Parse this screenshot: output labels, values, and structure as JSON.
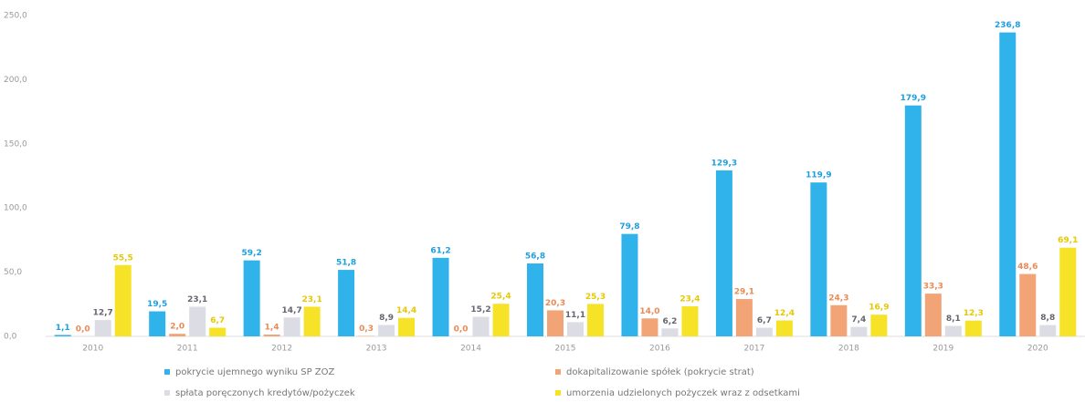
{
  "chart_data": {
    "type": "bar",
    "categories": [
      "2010",
      "2011",
      "2012",
      "2013",
      "2014",
      "2015",
      "2016",
      "2017",
      "2018",
      "2019",
      "2020"
    ],
    "series": [
      {
        "name": "pokrycie ujemnego wyniku SP ZOZ",
        "color": "#2fb3ea",
        "label_color": "#1e9fe0",
        "values": [
          1.1,
          19.5,
          59.2,
          51.8,
          61.2,
          56.8,
          79.8,
          129.3,
          119.9,
          179.9,
          236.8
        ],
        "value_labels": [
          "1,1",
          "19,5",
          "59,2",
          "51,8",
          "61,2",
          "56,8",
          "79,8",
          "129,3",
          "119,9",
          "179,9",
          "236,8"
        ]
      },
      {
        "name": "dokapitalizowanie spółek (pokrycie strat)",
        "color": "#f2a477",
        "label_color": "#ea8a55",
        "values": [
          0.0,
          2.0,
          1.4,
          0.3,
          0.0,
          20.3,
          14.0,
          29.1,
          24.3,
          33.3,
          48.6
        ],
        "value_labels": [
          "0,0",
          "2,0",
          "1,4",
          "0,3",
          "0,0",
          "20,3",
          "14,0",
          "29,1",
          "24,3",
          "33,3",
          "48,6"
        ]
      },
      {
        "name": "spłata poręczonych kredytów/pożyczek",
        "color": "#dcdce4",
        "label_color": "#666670",
        "values": [
          12.7,
          23.1,
          14.7,
          8.9,
          15.2,
          11.1,
          6.2,
          6.7,
          7.4,
          8.1,
          8.8
        ],
        "value_labels": [
          "12,7",
          "23,1",
          "14,7",
          "8,9",
          "15,2",
          "11,1",
          "6,2",
          "6,7",
          "7,4",
          "8,1",
          "8,8"
        ]
      },
      {
        "name": "umorzenia udzielonych pożyczek wraz z odsetkami",
        "color": "#f6e226",
        "label_color": "#e6c800",
        "values": [
          55.5,
          6.7,
          23.1,
          14.4,
          25.4,
          25.3,
          23.4,
          12.4,
          16.9,
          12.3,
          69.1
        ],
        "value_labels": [
          "55,5",
          "6,7",
          "23,1",
          "14,4",
          "25,4",
          "25,3",
          "23,4",
          "12,4",
          "16,9",
          "12,3",
          "69,1"
        ]
      }
    ],
    "ylim": [
      0,
      250
    ],
    "yticks": [
      {
        "value": 0,
        "label": "0,0"
      },
      {
        "value": 50,
        "label": "50,0"
      },
      {
        "value": 100,
        "label": "100,0"
      },
      {
        "value": 150,
        "label": "150,0"
      },
      {
        "value": 200,
        "label": "200,0"
      },
      {
        "value": 250,
        "label": "250,0"
      }
    ],
    "grid": false
  }
}
